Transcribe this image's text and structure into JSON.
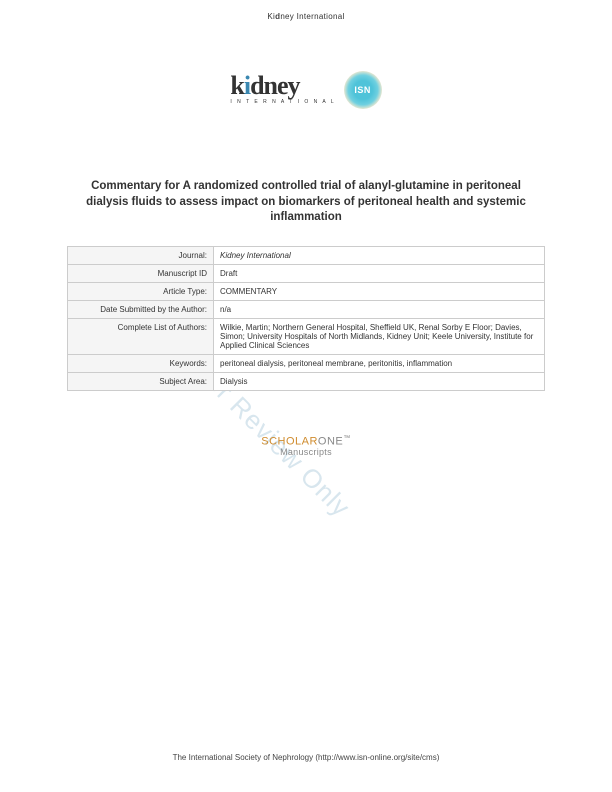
{
  "header": {
    "journal_name_pre": "Ki",
    "journal_name_d": "d",
    "journal_name_post": "ney International"
  },
  "logo": {
    "kidney_text": "kidney",
    "international_text": "I N T E R N A T I O N A L",
    "isn_text": "ISN"
  },
  "title": "Commentary for A randomized controlled trial of alanyl-glutamine in peritoneal dialysis fluids to assess impact on biomarkers of peritoneal health and systemic inflammation",
  "table": {
    "rows": [
      {
        "label": "Journal:",
        "value": "Kidney International",
        "italic": true
      },
      {
        "label": "Manuscript ID",
        "value": "Draft",
        "italic": false
      },
      {
        "label": "Article Type:",
        "value": "COMMENTARY",
        "italic": false
      },
      {
        "label": "Date Submitted by the Author:",
        "value": "n/a",
        "italic": false
      },
      {
        "label": "Complete List of Authors:",
        "value": "Wilkie, Martin; Northern General Hospital, Sheffield UK, Renal Sorby E Floor;\nDavies, Simon; University Hospitals of North Midlands, Kidney Unit; Keele University, Institute for Applied Clinical Sciences",
        "italic": false
      },
      {
        "label": "Keywords:",
        "value": "peritoneal dialysis, peritoneal membrane, peritonitis, inflammation",
        "italic": false
      },
      {
        "label": "Subject Area:",
        "value": "Dialysis",
        "italic": false
      }
    ]
  },
  "scholarone": {
    "scholar": "SCHOLAR",
    "one": "ONE",
    "tm": "™",
    "sub": "Manuscripts"
  },
  "watermark": "For Review Only",
  "footer": "The International Society of Nephrology (http://www.isn-online.org/site/cms)"
}
